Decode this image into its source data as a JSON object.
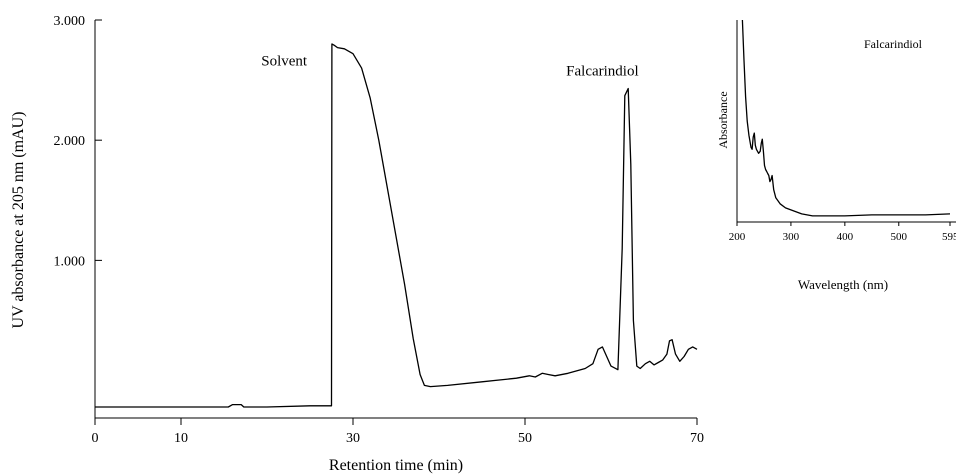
{
  "chart_data": [
    {
      "type": "line",
      "title": "",
      "xlabel": "Retention time (min)",
      "ylabel": "UV absorbance at 205 nm (mAU)",
      "xlim": [
        0,
        70
      ],
      "ylim": [
        -0.22,
        3.0
      ],
      "x_ticks": [
        0,
        10,
        30,
        50,
        70
      ],
      "x_tick_labels": [
        "0",
        "10",
        "30",
        "50",
        "70"
      ],
      "y_ticks": [
        1.0,
        2.0,
        3.0
      ],
      "y_tick_labels": [
        "1.000",
        "2.000",
        "3.000"
      ],
      "annotations": [
        {
          "text": "Solvent",
          "x": 22.0,
          "y": 2.62
        },
        {
          "text": "Falcarindiol",
          "x": 59.0,
          "y": 2.54
        }
      ],
      "series": [
        {
          "x": [
            0,
            15.5,
            16.0,
            16.5,
            17.0,
            17.3,
            17.8,
            20,
            25,
            27.5,
            27.55,
            27.8,
            28.2,
            29.0,
            30.0,
            31.0,
            32.0,
            33.0,
            34.0,
            35.0,
            36.0,
            37.0,
            37.8,
            38.3,
            39.0,
            41.0,
            45.0,
            49.0,
            50.5,
            51.2,
            52.0,
            52.7,
            53.5,
            55.0,
            57.0,
            57.9,
            58.5,
            59.0,
            59.5,
            60.0,
            60.8,
            61.3,
            61.6,
            62.0,
            62.3,
            62.6,
            63.0,
            63.4,
            64.0,
            64.5,
            65.0,
            65.5,
            66.0,
            66.5,
            66.8,
            67.1,
            67.5,
            68.0,
            68.5,
            69.0,
            69.5,
            70.0
          ],
          "values": [
            -0.22,
            -0.22,
            -0.2,
            -0.2,
            -0.2,
            -0.22,
            -0.22,
            -0.22,
            -0.21,
            -0.21,
            2.8,
            2.79,
            2.77,
            2.76,
            2.72,
            2.6,
            2.35,
            2.0,
            1.6,
            1.2,
            0.8,
            0.35,
            0.05,
            -0.04,
            -0.05,
            -0.04,
            -0.01,
            0.02,
            0.04,
            0.03,
            0.06,
            0.05,
            0.04,
            0.06,
            0.1,
            0.14,
            0.26,
            0.28,
            0.2,
            0.12,
            0.09,
            1.1,
            2.37,
            2.43,
            1.8,
            0.5,
            0.12,
            0.1,
            0.14,
            0.16,
            0.13,
            0.15,
            0.17,
            0.22,
            0.33,
            0.34,
            0.22,
            0.16,
            0.2,
            0.26,
            0.28,
            0.26
          ]
        }
      ]
    },
    {
      "type": "line",
      "title": "Falcarindiol",
      "xlabel": "Wavelength (nm)",
      "ylabel": "Absorbance",
      "xlim": [
        200,
        595
      ],
      "ylim": [
        0,
        1
      ],
      "x_ticks": [
        200,
        300,
        400,
        500,
        595
      ],
      "x_tick_labels": [
        "200",
        "300",
        "400",
        "500",
        "595"
      ],
      "series": [
        {
          "x": [
            210,
            213,
            216,
            219,
            222,
            226,
            228,
            230,
            232,
            234,
            236,
            240,
            243,
            245,
            247,
            249,
            251,
            253,
            255,
            257,
            259,
            261,
            263,
            265,
            268,
            272,
            280,
            290,
            300,
            310,
            320,
            340,
            360,
            400,
            450,
            500,
            550,
            595
          ],
          "values": [
            1.0,
            0.8,
            0.62,
            0.5,
            0.43,
            0.37,
            0.36,
            0.42,
            0.44,
            0.38,
            0.36,
            0.34,
            0.35,
            0.39,
            0.41,
            0.35,
            0.28,
            0.26,
            0.25,
            0.24,
            0.23,
            0.2,
            0.21,
            0.23,
            0.16,
            0.12,
            0.09,
            0.07,
            0.06,
            0.05,
            0.04,
            0.03,
            0.03,
            0.03,
            0.035,
            0.035,
            0.035,
            0.04
          ]
        }
      ]
    }
  ]
}
